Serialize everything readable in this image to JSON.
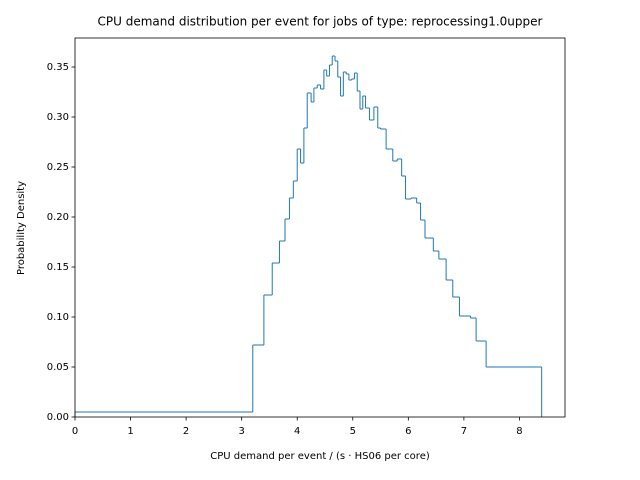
{
  "chart_data": {
    "type": "histogram",
    "histtype": "step",
    "title": "CPU demand distribution per event for jobs of type: reprocessing1.0upper",
    "x_label": "CPU demand per event / (s · HS06 per core)",
    "y_label": "Probability Density",
    "color": "#1f77b4",
    "bins": [
      0,
      3.2,
      3.4,
      3.55,
      3.68,
      3.78,
      3.86,
      3.93,
      4.0,
      4.06,
      4.12,
      4.18,
      4.25,
      4.3,
      4.36,
      4.42,
      4.48,
      4.53,
      4.58,
      4.63,
      4.68,
      4.73,
      4.78,
      4.83,
      4.88,
      4.93,
      4.98,
      5.03,
      5.08,
      5.13,
      5.18,
      5.23,
      5.3,
      5.38,
      5.45,
      5.5,
      5.6,
      5.72,
      5.8,
      5.88,
      5.95,
      6.05,
      6.15,
      6.22,
      6.3,
      6.45,
      6.55,
      6.68,
      6.8,
      6.92,
      7.12,
      7.22,
      7.4,
      8.4
    ],
    "values": [
      0.005,
      0.072,
      0.122,
      0.154,
      0.176,
      0.198,
      0.219,
      0.236,
      0.268,
      0.254,
      0.289,
      0.324,
      0.315,
      0.329,
      0.332,
      0.328,
      0.347,
      0.341,
      0.352,
      0.361,
      0.356,
      0.34,
      0.321,
      0.345,
      0.343,
      0.337,
      0.338,
      0.344,
      0.326,
      0.308,
      0.321,
      0.309,
      0.297,
      0.31,
      0.289,
      0.288,
      0.268,
      0.256,
      0.258,
      0.241,
      0.218,
      0.219,
      0.214,
      0.197,
      0.179,
      0.166,
      0.158,
      0.137,
      0.12,
      0.101,
      0.099,
      0.076,
      0.05
    ],
    "xlim": [
      0,
      8.82
    ],
    "ylim": [
      0,
      0.379
    ],
    "xticks": [
      0,
      1,
      2,
      3,
      4,
      5,
      6,
      7,
      8
    ],
    "yticks": [
      {
        "value": 0,
        "label": "0.00"
      },
      0.05,
      {
        "value": 0.1,
        "label": "0.10"
      },
      0.15,
      {
        "value": 0.2,
        "label": "0.20"
      },
      0.25,
      {
        "value": 0.3,
        "label": "0.30"
      },
      0.35
    ]
  }
}
